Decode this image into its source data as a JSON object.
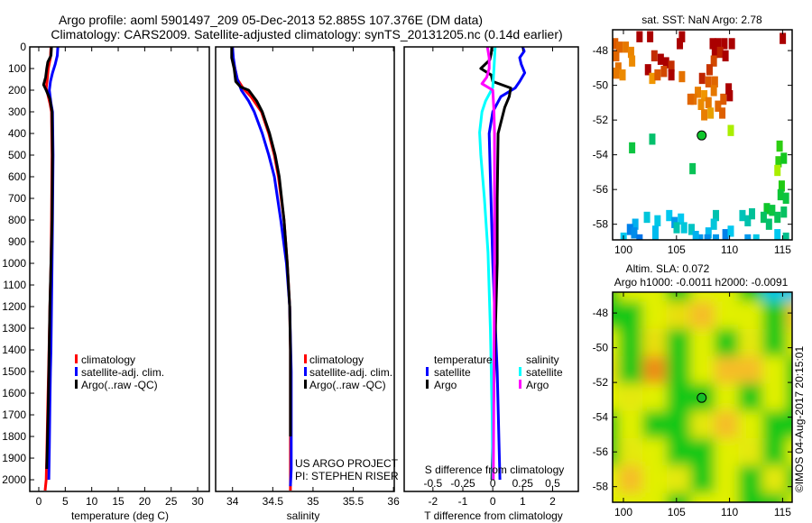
{
  "title": {
    "line1": "Argo profile: aoml 5901497_209 05-Dec-2013 52.885S 107.376E (DM data)",
    "line2": "Climatology: CARS2009. Satellite-adjusted climatology: synTS_20131205.nc (0.14d earlier)"
  },
  "credits": {
    "project": "US ARGO PROJECT",
    "pi": "PI: STEPHEN RISER",
    "imos": "©IMOS 04-Aug-2017 20:15:01"
  },
  "colors": {
    "climatology": "#ff0000",
    "satellite": "#0000ff",
    "argo": "#000000",
    "s_satellite": "#00ffff",
    "s_argo": "#ff00ff"
  },
  "chart_data": [
    {
      "type": "line",
      "id": "temperature",
      "xlabel": "temperature (deg C)",
      "ylabel": "depth",
      "xlim": [
        -1.7,
        32.2
      ],
      "ylim": [
        2054,
        0
      ],
      "xticks": [
        0,
        5,
        10,
        15,
        20,
        25,
        30
      ],
      "yticks": [
        0,
        100,
        200,
        300,
        400,
        500,
        600,
        700,
        800,
        900,
        1000,
        1100,
        1200,
        1300,
        1400,
        1500,
        1600,
        1700,
        1800,
        1900,
        2000
      ],
      "legend": [
        "climatology",
        "satellite-adj. clim.",
        "Argo(..raw -QC)"
      ],
      "series": [
        {
          "name": "climatology",
          "color": "#ff0000",
          "depth": [
            0,
            50,
            100,
            150,
            190,
            220,
            260,
            300,
            500,
            800,
            1000,
            1200,
            1450,
            1650,
            1900,
            2000,
            2050
          ],
          "values": [
            2.3,
            2.2,
            1.8,
            1.6,
            1.4,
            1.7,
            2.1,
            2.4,
            2.5,
            2.4,
            2.3,
            2.1,
            1.9,
            1.7,
            1.5,
            1.4,
            1.2
          ]
        },
        {
          "name": "satellite-adj. clim.",
          "color": "#0000ff",
          "depth": [
            0,
            40,
            80,
            120,
            160,
            200,
            260,
            300,
            500,
            800,
            1000,
            1200,
            1400,
            1500,
            1650,
            1850,
            2000
          ],
          "values": [
            3.6,
            3.5,
            3.1,
            2.6,
            2.2,
            2.0,
            2.3,
            2.6,
            2.7,
            2.6,
            2.5,
            2.4,
            2.3,
            2.2,
            2.1,
            2.0,
            1.9
          ]
        },
        {
          "name": "Argo(..raw -QC)",
          "color": "#000000",
          "depth": [
            0,
            40,
            70,
            100,
            140,
            175,
            200,
            240,
            300,
            500,
            800,
            1000,
            1200,
            1500,
            1650,
            1850,
            1950
          ],
          "values": [
            2.4,
            2.3,
            1.7,
            1.5,
            1.3,
            0.9,
            1.4,
            2.1,
            2.5,
            2.6,
            2.5,
            2.3,
            2.1,
            1.9,
            1.8,
            1.6,
            1.5
          ]
        }
      ]
    },
    {
      "type": "line",
      "id": "salinity",
      "xlabel": "salinity",
      "xlim": [
        33.79,
        36.01
      ],
      "ylim": [
        2054,
        0
      ],
      "xticks": [
        34,
        34.5,
        35,
        35.5,
        36
      ],
      "legend": [
        "climatology",
        "satellite-adj. clim.",
        "Argo(..raw -QC)"
      ],
      "series": [
        {
          "name": "climatology",
          "color": "#ff0000",
          "depth": [
            0,
            50,
            100,
            150,
            190,
            230,
            300,
            400,
            500,
            600,
            800,
            1000,
            1200,
            1400,
            1800,
            2050
          ],
          "values": [
            34.0,
            34.0,
            34.03,
            34.06,
            34.13,
            34.23,
            34.36,
            34.45,
            34.52,
            34.57,
            34.64,
            34.68,
            34.71,
            34.72,
            34.72,
            34.72
          ]
        },
        {
          "name": "satellite-adj. clim.",
          "color": "#0000ff",
          "depth": [
            0,
            50,
            100,
            150,
            200,
            250,
            300,
            400,
            500,
            600,
            800,
            1000,
            1200,
            1500,
            1950,
            2030
          ],
          "values": [
            34.0,
            34.01,
            34.03,
            34.06,
            34.11,
            34.2,
            34.27,
            34.37,
            34.45,
            34.52,
            34.6,
            34.67,
            34.71,
            34.73,
            34.73,
            34.72
          ]
        },
        {
          "name": "Argo(..raw -QC)",
          "color": "#000000",
          "depth": [
            0,
            50,
            100,
            160,
            185,
            200,
            250,
            300,
            400,
            500,
            600,
            800,
            1000,
            1200,
            1400,
            1800
          ],
          "values": [
            33.99,
            33.99,
            34.02,
            34.04,
            34.1,
            34.2,
            34.3,
            34.37,
            34.46,
            34.53,
            34.58,
            34.64,
            34.68,
            34.71,
            34.72,
            34.72
          ]
        }
      ]
    },
    {
      "type": "line",
      "id": "differences",
      "xlabel": "T difference from climatology",
      "x2label": "S difference from climatology",
      "xlim": [
        -2.96,
        2.86
      ],
      "ylim": [
        2054,
        0
      ],
      "xticks": [
        -2,
        -1,
        0,
        1,
        2
      ],
      "x2ticks": [
        -0.5,
        -0.25,
        0,
        0.25,
        0.5
      ],
      "legend": {
        "temperature_label": "temperature",
        "salinity_label": "salinity",
        "t_satellite": "satellite",
        "t_argo": "Argo",
        "s_satellite": "satellite",
        "s_argo": "Argo"
      },
      "series": [
        {
          "name": "T satellite",
          "axis": "T",
          "color": "#0000ff",
          "depth": [
            0,
            20,
            50,
            80,
            120,
            160,
            190,
            230,
            300,
            400,
            600,
            1000,
            1500,
            2000
          ],
          "values": [
            1.0,
            1.05,
            0.9,
            0.95,
            1.07,
            0.9,
            0.75,
            0.27,
            0.0,
            -0.12,
            -0.08,
            0.0,
            0.15,
            0.24
          ]
        },
        {
          "name": "T Argo",
          "axis": "T",
          "color": "#000000",
          "depth": [
            0,
            30,
            60,
            100,
            130,
            160,
            190,
            230,
            280,
            400,
            700,
            1000,
            1500,
            2000
          ],
          "values": [
            -0.03,
            -0.05,
            -0.1,
            -0.4,
            -0.05,
            0.0,
            0.6,
            0.55,
            0.4,
            0.18,
            0.15,
            0.15,
            0.05,
            -0.03
          ]
        },
        {
          "name": "S satellite",
          "axis": "S",
          "color": "#00ffff",
          "depth": [
            0,
            100,
            187,
            250,
            300,
            395,
            500,
            700,
            950,
            1300,
            1700,
            2000
          ],
          "values": [
            0.02,
            0.01,
            0.0,
            -0.06,
            -0.09,
            -0.11,
            -0.1,
            -0.07,
            -0.04,
            -0.02,
            -0.005,
            0.0
          ]
        },
        {
          "name": "S Argo",
          "axis": "S",
          "color": "#ff00ff",
          "depth": [
            0,
            50,
            100,
            140,
            170,
            200,
            300,
            400,
            700,
            1000,
            1500,
            2000
          ],
          "values": [
            -0.045,
            -0.03,
            -0.03,
            -0.05,
            -0.09,
            0.0,
            0.01,
            0.015,
            0.015,
            0.015,
            0.01,
            0.005
          ]
        }
      ]
    },
    {
      "type": "scatter",
      "id": "sst_map",
      "title": "sat. SST: NaN Argo: 2.78",
      "xlim": [
        98.98,
        115.9
      ],
      "ylim": [
        -58.9,
        -46.8
      ],
      "xticks": [
        100,
        105,
        110,
        115
      ],
      "yticks": [
        -48,
        -50,
        -52,
        -54,
        -56,
        -58
      ],
      "argo_position": {
        "lon": 107.376,
        "lat": -52.885,
        "sst": 2.78
      },
      "cells_lon_lat_sst": [
        [
          101.5,
          -47.2,
          8
        ],
        [
          102.5,
          -47.2,
          8
        ],
        [
          105.5,
          -47.2,
          8
        ],
        [
          105.3,
          -47.6,
          8
        ],
        [
          115,
          -47.3,
          8
        ],
        [
          108.4,
          -47.6,
          8
        ],
        [
          108.9,
          -47.6,
          8
        ],
        [
          109.5,
          -47.6,
          8
        ],
        [
          110.2,
          -47.6,
          8
        ],
        [
          108.6,
          -48.1,
          8
        ],
        [
          109.1,
          -48.1,
          7.6
        ],
        [
          109.6,
          -48.3,
          8
        ],
        [
          102.9,
          -48.3,
          7.5
        ],
        [
          103.5,
          -48.5,
          8
        ],
        [
          104,
          -48.7,
          8
        ],
        [
          104.5,
          -48.9,
          7.5
        ],
        [
          102.3,
          -49.1,
          8
        ],
        [
          104.5,
          -49.4,
          8
        ],
        [
          99.2,
          -47.6,
          7
        ],
        [
          99.6,
          -47.8,
          6.8
        ],
        [
          100.2,
          -47.8,
          6.5
        ],
        [
          99.3,
          -48.3,
          6.8
        ],
        [
          100.7,
          -48.1,
          6.3
        ],
        [
          100.8,
          -48.6,
          6.2
        ],
        [
          99.5,
          -49,
          6.6
        ],
        [
          99.9,
          -49.4,
          6.2
        ],
        [
          99.3,
          -49.3,
          6.5
        ],
        [
          102.7,
          -49.6,
          6
        ],
        [
          103.2,
          -49.4,
          7
        ],
        [
          103.8,
          -49.2,
          7.2
        ],
        [
          105.5,
          -49.5,
          6.6
        ],
        [
          108.5,
          -48.6,
          7.2
        ],
        [
          108.1,
          -49.1,
          7.4
        ],
        [
          107.4,
          -49.6,
          7.6
        ],
        [
          108,
          -49.8,
          7
        ],
        [
          108.6,
          -49.8,
          6.8
        ],
        [
          108.5,
          -50.3,
          6.5
        ],
        [
          107.6,
          -50.6,
          6
        ],
        [
          107,
          -50.4,
          6.4
        ],
        [
          106.6,
          -50.8,
          6.6
        ],
        [
          107.3,
          -51.1,
          6.2
        ],
        [
          108,
          -51,
          6.5
        ],
        [
          108.9,
          -51.2,
          6.8
        ],
        [
          109.4,
          -50.8,
          7
        ],
        [
          109.9,
          -50.2,
          8
        ],
        [
          110,
          -50.6,
          8
        ],
        [
          108.2,
          -51.6,
          5.8
        ],
        [
          107.6,
          -51.7,
          6.4
        ],
        [
          106.3,
          -50.8,
          6.8
        ],
        [
          109.3,
          -51.6,
          6.9
        ],
        [
          110.1,
          -52.6,
          4.2
        ],
        [
          102.7,
          -53.1,
          2.2
        ],
        [
          100.8,
          -53.6,
          2.6
        ],
        [
          106.5,
          -54.8,
          2.4
        ],
        [
          114.7,
          -53.5,
          3.2
        ],
        [
          114.6,
          -54.4,
          3.2
        ],
        [
          115.1,
          -54.2,
          2.9
        ],
        [
          114.5,
          -54.9,
          4.2
        ],
        [
          114.9,
          -55.8,
          3.1
        ],
        [
          114.8,
          -56.3,
          2.7
        ],
        [
          115.3,
          -56.5,
          2.6
        ],
        [
          113.5,
          -57.1,
          2.8
        ],
        [
          114,
          -57.2,
          2.6
        ],
        [
          114.5,
          -57.6,
          2.4
        ],
        [
          113.2,
          -57.6,
          2.3
        ],
        [
          113.7,
          -58,
          2.2
        ],
        [
          115.1,
          -57.3,
          2.3
        ],
        [
          102.2,
          -57.6,
          1.2
        ],
        [
          103.2,
          -57.8,
          1.1
        ],
        [
          104.3,
          -57.5,
          1.0
        ],
        [
          104.8,
          -57.9,
          0.6
        ],
        [
          105.4,
          -57.7,
          1.0
        ],
        [
          105,
          -58.2,
          1.6
        ],
        [
          105.7,
          -58.2,
          1.2
        ],
        [
          106.4,
          -58.3,
          1.4
        ],
        [
          103,
          -58.4,
          0.9
        ],
        [
          101.1,
          -58,
          0.8
        ],
        [
          100.6,
          -58.3,
          0.4
        ],
        [
          101,
          -58.5,
          0.5
        ],
        [
          100,
          -58.8,
          1.0
        ],
        [
          101.5,
          -58.9,
          0.3
        ],
        [
          103,
          -58.9,
          0.9
        ],
        [
          108.7,
          -57.5,
          1.6
        ],
        [
          108.5,
          -58,
          1.2
        ],
        [
          108,
          -58.5,
          0.9
        ],
        [
          107.2,
          -58.9,
          0.6
        ],
        [
          107.9,
          -58.9,
          0.5
        ],
        [
          108.7,
          -58.9,
          0.6
        ],
        [
          109.6,
          -58.6,
          0.4
        ],
        [
          110.1,
          -58.4,
          1.0
        ],
        [
          111.2,
          -57.5,
          1.5
        ],
        [
          111.7,
          -57.8,
          1.6
        ],
        [
          112.1,
          -57.4,
          1.8
        ],
        [
          111.7,
          -58.9,
          0.6
        ],
        [
          112.5,
          -58.9,
          1.1
        ],
        [
          114.5,
          -58.6,
          1.0
        ],
        [
          115.3,
          -58.8,
          1.9
        ],
        [
          106.8,
          -58.7,
          0.8
        ]
      ]
    },
    {
      "type": "heatmap",
      "id": "sla_map",
      "title": "Altim. SLA: 0.072",
      "subtitle": "Argo h1000: -0.0011 h2000: -0.0091",
      "xlim": [
        98.98,
        115.9
      ],
      "ylim": [
        -58.9,
        -46.8
      ],
      "xticks": [
        100,
        105,
        110,
        115
      ],
      "yticks": [
        -48,
        -50,
        -52,
        -54,
        -56,
        -58
      ],
      "argo_position": {
        "lon": 107.376,
        "lat": -52.885
      },
      "sla_grid_rows_north_to_south": [
        [
          -0.05,
          0.04,
          0.04,
          -0.05,
          0.04,
          0.04,
          -0.05,
          -0.15,
          -0.15
        ],
        [
          -0.05,
          -0.05,
          0.04,
          0.06,
          0.1,
          0.04,
          0.04,
          -0.05,
          0.09
        ],
        [
          0.04,
          -0.05,
          0.06,
          -0.05,
          0.04,
          -0.05,
          0.05,
          -0.05,
          0.05
        ],
        [
          0.06,
          -0.05,
          0.14,
          -0.05,
          0.04,
          0.1,
          0.1,
          0.04,
          -0.05
        ],
        [
          0.04,
          0.05,
          0.04,
          -0.05,
          -0.05,
          0.04,
          -0.05,
          0.04,
          -0.05
        ],
        [
          -0.05,
          0.04,
          -0.05,
          -0.05,
          0.05,
          0.1,
          0.04,
          -0.05,
          -0.05
        ],
        [
          -0.05,
          0.05,
          0.04,
          -0.05,
          -0.05,
          0.04,
          0.05,
          -0.05,
          0.04
        ],
        [
          0.04,
          0.1,
          0.04,
          0.05,
          -0.05,
          0.04,
          -0.05,
          0.05,
          -0.05
        ],
        [
          0.04,
          0.04,
          0.04,
          -0.05,
          0.04,
          0.04,
          -0.05,
          -0.05,
          0.04
        ]
      ]
    }
  ]
}
